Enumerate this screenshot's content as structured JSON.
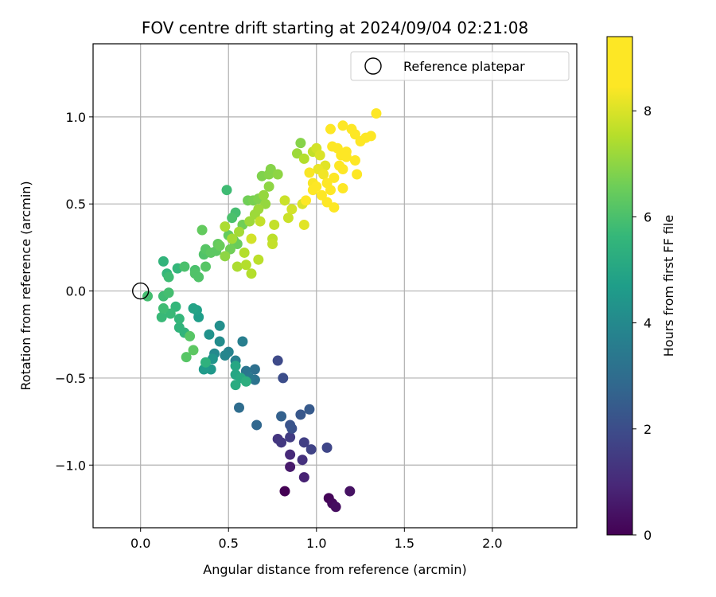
{
  "chart_data": {
    "type": "scatter",
    "title": "FOV centre drift starting at 2024/09/04 02:21:08",
    "xlabel": "Angular distance from reference (arcmin)",
    "ylabel": "Rotation from reference (arcmin)",
    "xlim": [
      -0.27,
      2.48
    ],
    "ylim": [
      -1.36,
      1.42
    ],
    "xticks": [
      0.0,
      0.5,
      1.0,
      1.5,
      2.0
    ],
    "xtick_labels": [
      "0.0",
      "0.5",
      "1.0",
      "1.5",
      "2.0"
    ],
    "yticks": [
      -1.0,
      -0.5,
      0.0,
      0.5,
      1.0
    ],
    "ytick_labels": [
      "−1.0",
      "−0.5",
      "0.0",
      "0.5",
      "1.0"
    ],
    "grid": true,
    "legend": {
      "position": "top-right",
      "entries": [
        {
          "label": "Reference platepar",
          "marker": "open-circle"
        }
      ]
    },
    "reference_point": {
      "x": 0.0,
      "y": 0.0
    },
    "colorbar": {
      "label": "Hours from first FF file",
      "colormap": "viridis",
      "range": [
        0,
        9.4
      ],
      "ticks": [
        0,
        2,
        4,
        6,
        8
      ],
      "tick_labels": [
        "0",
        "2",
        "4",
        "6",
        "8"
      ]
    },
    "points": [
      {
        "x": 0.82,
        "y": -1.15,
        "c": 0.0
      },
      {
        "x": 1.07,
        "y": -1.19,
        "c": 0.1
      },
      {
        "x": 1.09,
        "y": -1.22,
        "c": 0.2
      },
      {
        "x": 1.11,
        "y": -1.24,
        "c": 0.3
      },
      {
        "x": 1.19,
        "y": -1.15,
        "c": 0.4
      },
      {
        "x": 0.85,
        "y": -1.01,
        "c": 0.6
      },
      {
        "x": 0.93,
        "y": -1.07,
        "c": 0.8
      },
      {
        "x": 0.85,
        "y": -0.94,
        "c": 1.0
      },
      {
        "x": 0.92,
        "y": -0.97,
        "c": 1.2
      },
      {
        "x": 0.78,
        "y": -0.85,
        "c": 1.3
      },
      {
        "x": 0.8,
        "y": -0.87,
        "c": 1.4
      },
      {
        "x": 0.85,
        "y": -0.84,
        "c": 1.5
      },
      {
        "x": 0.93,
        "y": -0.87,
        "c": 1.6
      },
      {
        "x": 0.97,
        "y": -0.91,
        "c": 1.7
      },
      {
        "x": 1.06,
        "y": -0.9,
        "c": 1.8
      },
      {
        "x": 0.78,
        "y": -0.4,
        "c": 1.9
      },
      {
        "x": 0.81,
        "y": -0.5,
        "c": 2.0
      },
      {
        "x": 0.86,
        "y": -0.79,
        "c": 2.1
      },
      {
        "x": 0.85,
        "y": -0.77,
        "c": 2.2
      },
      {
        "x": 0.91,
        "y": -0.71,
        "c": 2.3
      },
      {
        "x": 0.96,
        "y": -0.68,
        "c": 2.4
      },
      {
        "x": 0.8,
        "y": -0.72,
        "c": 2.6
      },
      {
        "x": 0.66,
        "y": -0.77,
        "c": 2.8
      },
      {
        "x": 0.56,
        "y": -0.67,
        "c": 3.0
      },
      {
        "x": 0.65,
        "y": -0.45,
        "c": 3.1
      },
      {
        "x": 0.65,
        "y": -0.51,
        "c": 3.2
      },
      {
        "x": 0.6,
        "y": -0.46,
        "c": 3.3
      },
      {
        "x": 0.62,
        "y": -0.5,
        "c": 3.4
      },
      {
        "x": 0.58,
        "y": -0.29,
        "c": 3.6
      },
      {
        "x": 0.54,
        "y": -0.4,
        "c": 3.7
      },
      {
        "x": 0.5,
        "y": -0.35,
        "c": 3.8
      },
      {
        "x": 0.48,
        "y": -0.37,
        "c": 3.9
      },
      {
        "x": 0.42,
        "y": -0.36,
        "c": 4.0
      },
      {
        "x": 0.45,
        "y": -0.29,
        "c": 4.1
      },
      {
        "x": 0.45,
        "y": -0.2,
        "c": 4.2
      },
      {
        "x": 0.39,
        "y": -0.25,
        "c": 4.3
      },
      {
        "x": 0.41,
        "y": -0.39,
        "c": 4.4
      },
      {
        "x": 0.4,
        "y": -0.45,
        "c": 4.5
      },
      {
        "x": 0.36,
        "y": -0.45,
        "c": 4.6
      },
      {
        "x": 0.33,
        "y": -0.15,
        "c": 4.7
      },
      {
        "x": 0.32,
        "y": -0.11,
        "c": 4.8
      },
      {
        "x": 0.3,
        "y": -0.1,
        "c": 4.9
      },
      {
        "x": 0.54,
        "y": -0.43,
        "c": 5.0
      },
      {
        "x": 0.54,
        "y": -0.48,
        "c": 5.0
      },
      {
        "x": 0.57,
        "y": -0.5,
        "c": 5.1
      },
      {
        "x": 0.54,
        "y": -0.54,
        "c": 5.2
      },
      {
        "x": 0.6,
        "y": -0.52,
        "c": 5.3
      },
      {
        "x": 0.37,
        "y": -0.41,
        "c": 5.4
      },
      {
        "x": 0.25,
        "y": -0.24,
        "c": 5.5
      },
      {
        "x": 0.22,
        "y": -0.21,
        "c": 5.5
      },
      {
        "x": 0.2,
        "y": -0.09,
        "c": 5.6
      },
      {
        "x": 0.22,
        "y": -0.16,
        "c": 5.6
      },
      {
        "x": 0.17,
        "y": -0.13,
        "c": 5.7
      },
      {
        "x": 0.12,
        "y": -0.15,
        "c": 5.7
      },
      {
        "x": 0.13,
        "y": -0.1,
        "c": 5.8
      },
      {
        "x": 0.13,
        "y": -0.03,
        "c": 5.8
      },
      {
        "x": 0.16,
        "y": -0.01,
        "c": 5.9
      },
      {
        "x": 0.04,
        "y": -0.03,
        "c": 5.9
      },
      {
        "x": 0.15,
        "y": 0.1,
        "c": 5.6
      },
      {
        "x": 0.13,
        "y": 0.17,
        "c": 5.5
      },
      {
        "x": 0.16,
        "y": 0.08,
        "c": 5.8
      },
      {
        "x": 0.21,
        "y": 0.13,
        "c": 5.6
      },
      {
        "x": 0.25,
        "y": 0.14,
        "c": 6.0
      },
      {
        "x": 0.31,
        "y": 0.12,
        "c": 6.0
      },
      {
        "x": 0.31,
        "y": 0.1,
        "c": 6.1
      },
      {
        "x": 0.33,
        "y": 0.08,
        "c": 6.1
      },
      {
        "x": 0.37,
        "y": 0.14,
        "c": 6.2
      },
      {
        "x": 0.36,
        "y": 0.21,
        "c": 6.1
      },
      {
        "x": 0.37,
        "y": 0.24,
        "c": 6.2
      },
      {
        "x": 0.4,
        "y": 0.22,
        "c": 6.3
      },
      {
        "x": 0.43,
        "y": 0.23,
        "c": 6.3
      },
      {
        "x": 0.44,
        "y": 0.27,
        "c": 6.4
      },
      {
        "x": 0.35,
        "y": 0.35,
        "c": 6.4
      },
      {
        "x": 0.26,
        "y": -0.38,
        "c": 6.2
      },
      {
        "x": 0.28,
        "y": -0.26,
        "c": 6.2
      },
      {
        "x": 0.3,
        "y": -0.34,
        "c": 6.3
      },
      {
        "x": 0.49,
        "y": 0.58,
        "c": 5.8
      },
      {
        "x": 0.54,
        "y": 0.45,
        "c": 5.9
      },
      {
        "x": 0.52,
        "y": 0.42,
        "c": 6.0
      },
      {
        "x": 0.5,
        "y": 0.32,
        "c": 6.4
      },
      {
        "x": 0.53,
        "y": 0.29,
        "c": 6.5
      },
      {
        "x": 0.55,
        "y": 0.27,
        "c": 6.5
      },
      {
        "x": 0.58,
        "y": 0.38,
        "c": 6.6
      },
      {
        "x": 0.61,
        "y": 0.52,
        "c": 6.6
      },
      {
        "x": 0.64,
        "y": 0.52,
        "c": 6.7
      },
      {
        "x": 0.67,
        "y": 0.53,
        "c": 6.8
      },
      {
        "x": 0.69,
        "y": 0.66,
        "c": 6.8
      },
      {
        "x": 0.73,
        "y": 0.67,
        "c": 6.9
      },
      {
        "x": 0.74,
        "y": 0.7,
        "c": 6.9
      },
      {
        "x": 0.78,
        "y": 0.67,
        "c": 7.0
      },
      {
        "x": 0.73,
        "y": 0.6,
        "c": 7.0
      },
      {
        "x": 0.7,
        "y": 0.55,
        "c": 7.1
      },
      {
        "x": 0.71,
        "y": 0.5,
        "c": 7.1
      },
      {
        "x": 0.67,
        "y": 0.47,
        "c": 7.2
      },
      {
        "x": 0.65,
        "y": 0.44,
        "c": 7.2
      },
      {
        "x": 0.62,
        "y": 0.4,
        "c": 7.2
      },
      {
        "x": 0.56,
        "y": 0.34,
        "c": 7.3
      },
      {
        "x": 0.52,
        "y": 0.3,
        "c": 7.3
      },
      {
        "x": 0.48,
        "y": 0.37,
        "c": 7.4
      },
      {
        "x": 0.55,
        "y": 0.14,
        "c": 7.4
      },
      {
        "x": 0.6,
        "y": 0.15,
        "c": 7.5
      },
      {
        "x": 0.63,
        "y": 0.1,
        "c": 7.5
      },
      {
        "x": 0.67,
        "y": 0.18,
        "c": 7.6
      },
      {
        "x": 0.75,
        "y": 0.3,
        "c": 7.6
      },
      {
        "x": 0.75,
        "y": 0.27,
        "c": 7.7
      },
      {
        "x": 0.76,
        "y": 0.38,
        "c": 7.7
      },
      {
        "x": 0.82,
        "y": 0.52,
        "c": 7.8
      },
      {
        "x": 0.84,
        "y": 0.42,
        "c": 7.8
      },
      {
        "x": 0.86,
        "y": 0.47,
        "c": 7.9
      },
      {
        "x": 0.92,
        "y": 0.5,
        "c": 8.0
      },
      {
        "x": 0.93,
        "y": 0.38,
        "c": 8.1
      },
      {
        "x": 0.89,
        "y": 0.79,
        "c": 7.2
      },
      {
        "x": 0.91,
        "y": 0.85,
        "c": 6.9
      },
      {
        "x": 0.93,
        "y": 0.76,
        "c": 7.5
      },
      {
        "x": 0.98,
        "y": 0.8,
        "c": 7.7
      },
      {
        "x": 1.0,
        "y": 0.82,
        "c": 7.9
      },
      {
        "x": 1.02,
        "y": 0.78,
        "c": 8.0
      },
      {
        "x": 1.05,
        "y": 0.72,
        "c": 8.1
      },
      {
        "x": 1.01,
        "y": 0.7,
        "c": 8.2
      },
      {
        "x": 1.04,
        "y": 0.67,
        "c": 8.3
      },
      {
        "x": 0.96,
        "y": 0.68,
        "c": 8.4
      },
      {
        "x": 0.98,
        "y": 0.62,
        "c": 8.4
      },
      {
        "x": 1.0,
        "y": 0.6,
        "c": 8.5
      },
      {
        "x": 1.03,
        "y": 0.55,
        "c": 8.6
      },
      {
        "x": 0.98,
        "y": 0.58,
        "c": 8.7
      },
      {
        "x": 0.94,
        "y": 0.52,
        "c": 8.8
      },
      {
        "x": 1.08,
        "y": 0.93,
        "c": 8.5
      },
      {
        "x": 1.09,
        "y": 0.83,
        "c": 8.6
      },
      {
        "x": 1.12,
        "y": 0.82,
        "c": 8.7
      },
      {
        "x": 1.14,
        "y": 0.78,
        "c": 8.8
      },
      {
        "x": 1.13,
        "y": 0.72,
        "c": 8.9
      },
      {
        "x": 1.1,
        "y": 0.65,
        "c": 9.0
      },
      {
        "x": 1.06,
        "y": 0.62,
        "c": 9.0
      },
      {
        "x": 1.08,
        "y": 0.58,
        "c": 9.1
      },
      {
        "x": 1.06,
        "y": 0.51,
        "c": 9.1
      },
      {
        "x": 1.1,
        "y": 0.48,
        "c": 9.2
      },
      {
        "x": 1.15,
        "y": 0.95,
        "c": 9.3
      },
      {
        "x": 1.2,
        "y": 0.93,
        "c": 8.9
      },
      {
        "x": 1.22,
        "y": 0.9,
        "c": 8.8
      },
      {
        "x": 1.25,
        "y": 0.86,
        "c": 8.9
      },
      {
        "x": 1.28,
        "y": 0.88,
        "c": 9.0
      },
      {
        "x": 1.31,
        "y": 0.89,
        "c": 9.1
      },
      {
        "x": 1.34,
        "y": 1.02,
        "c": 9.2
      },
      {
        "x": 1.17,
        "y": 0.8,
        "c": 9.1
      },
      {
        "x": 1.17,
        "y": 0.77,
        "c": 9.2
      },
      {
        "x": 1.22,
        "y": 0.75,
        "c": 9.2
      },
      {
        "x": 1.23,
        "y": 0.67,
        "c": 9.3
      },
      {
        "x": 1.15,
        "y": 0.7,
        "c": 9.3
      },
      {
        "x": 1.15,
        "y": 0.59,
        "c": 9.4
      },
      {
        "x": 0.63,
        "y": 0.3,
        "c": 7.9
      },
      {
        "x": 0.68,
        "y": 0.4,
        "c": 7.7
      },
      {
        "x": 0.59,
        "y": 0.22,
        "c": 7.5
      },
      {
        "x": 0.48,
        "y": 0.2,
        "c": 7.0
      },
      {
        "x": 0.51,
        "y": 0.24,
        "c": 6.6
      },
      {
        "x": 0.45,
        "y": 0.26,
        "c": 6.5
      }
    ]
  }
}
